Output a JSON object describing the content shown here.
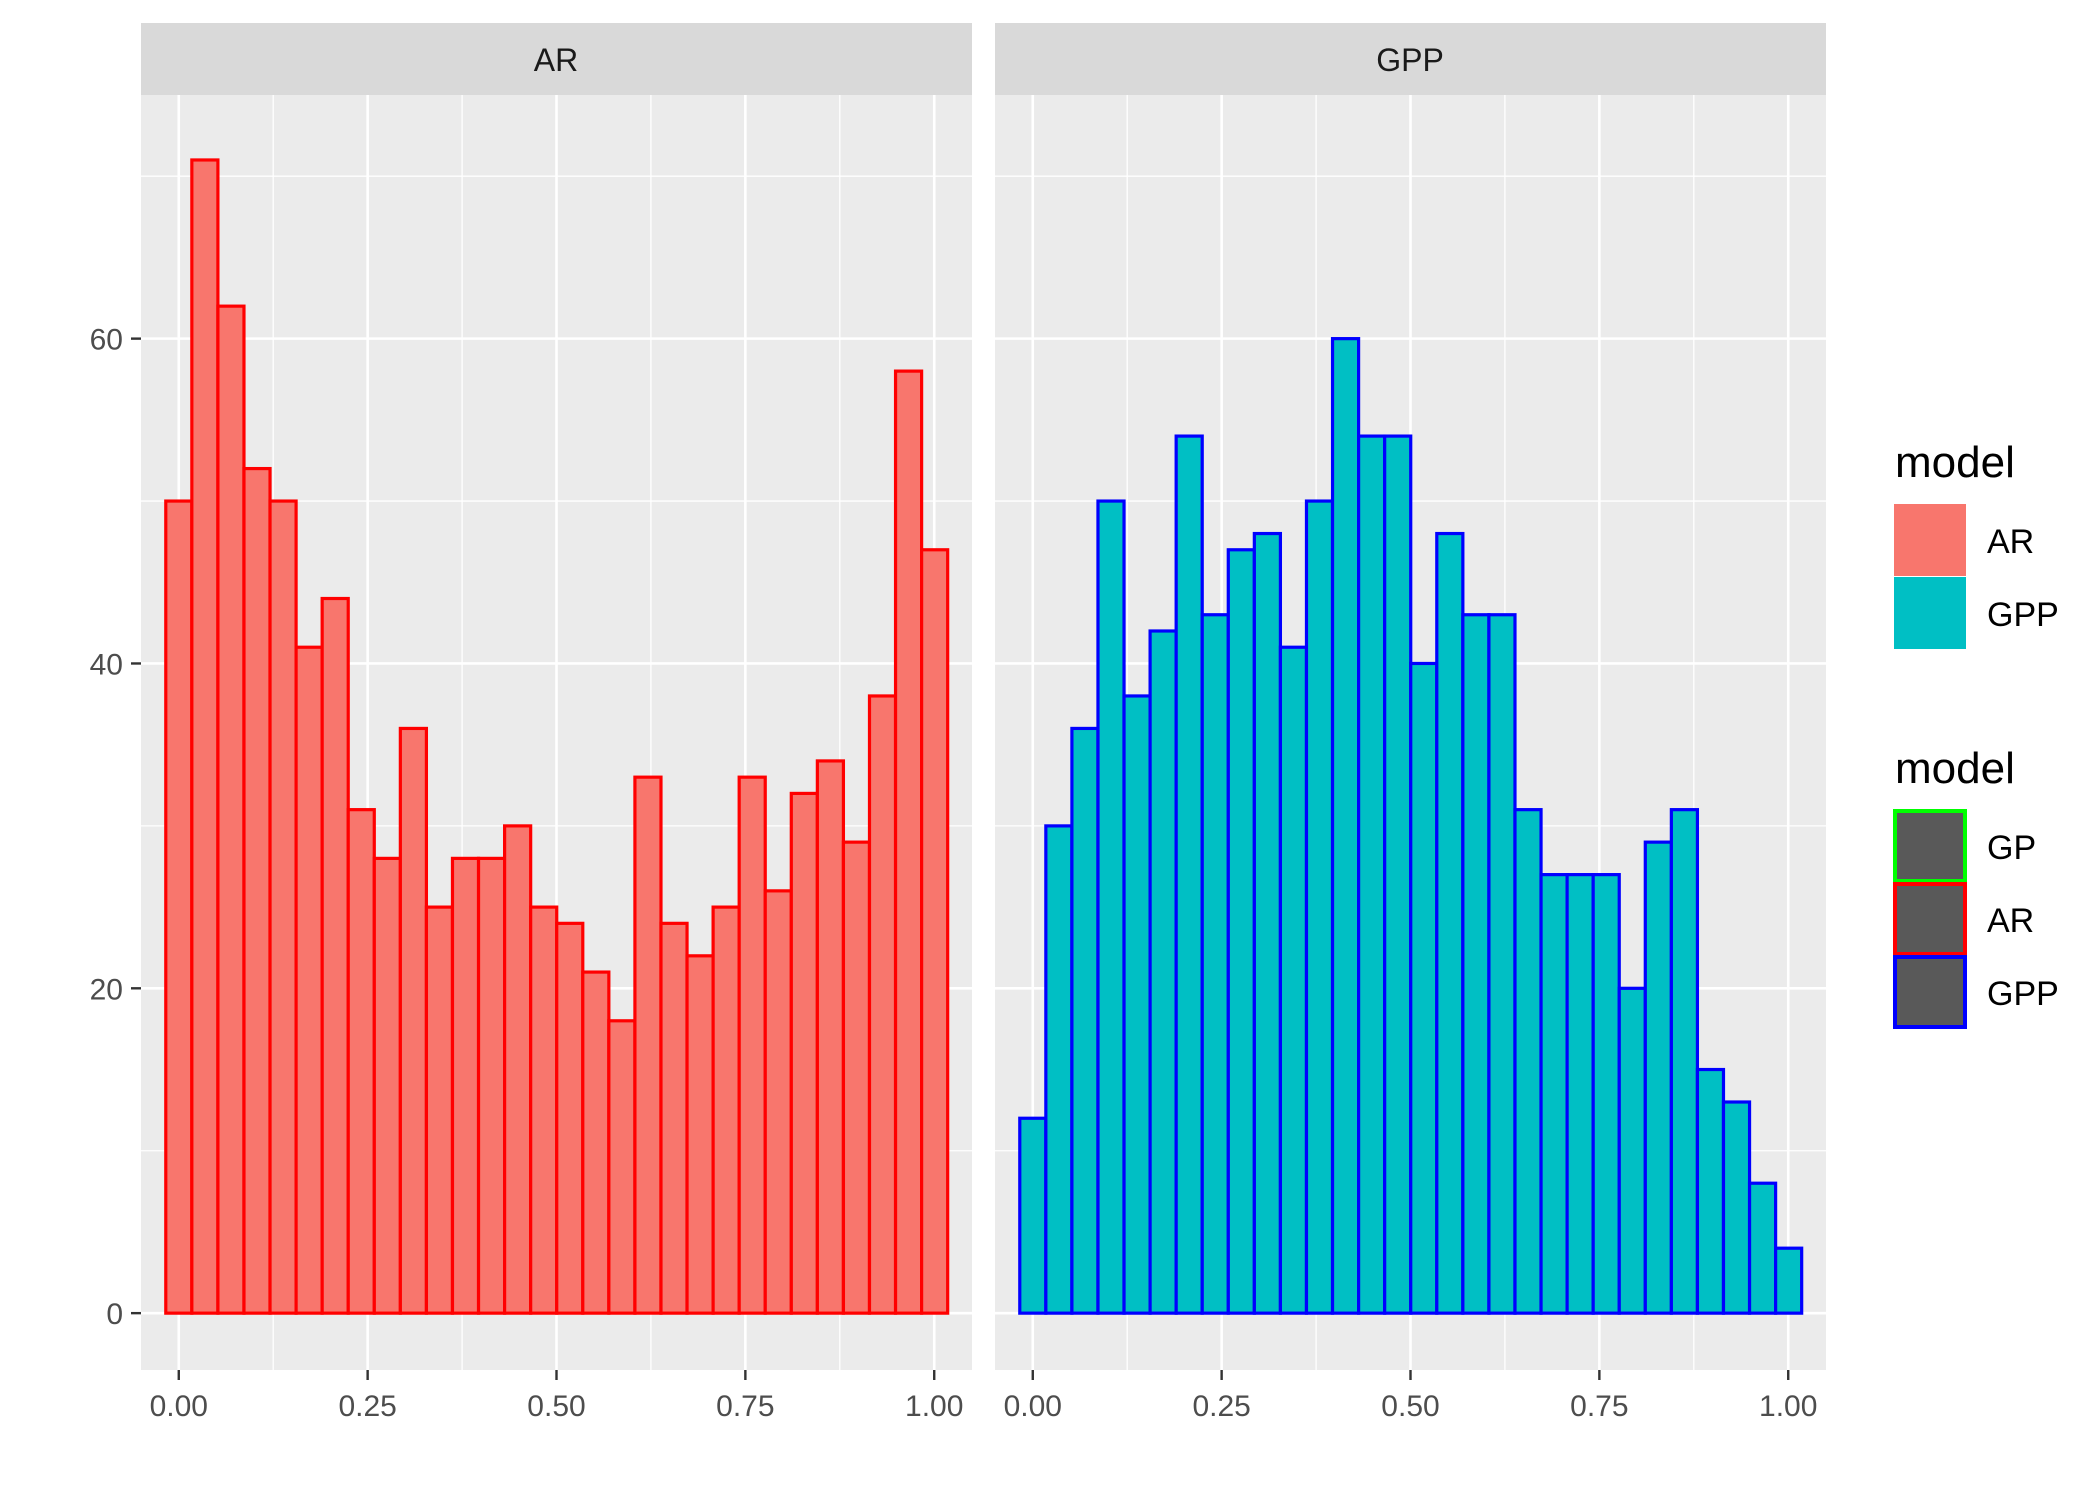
{
  "chart_data": {
    "type": "bar",
    "title": "",
    "xlabel": "",
    "ylabel": "",
    "xlim": [
      -0.05,
      1.05
    ],
    "ylim": [
      -3.5,
      75
    ],
    "x_ticks": [
      "0.00",
      "0.25",
      "0.50",
      "0.75",
      "1.00"
    ],
    "x_tick_values": [
      0,
      0.25,
      0.5,
      0.75,
      1.0
    ],
    "y_ticks": [
      "0",
      "20",
      "40",
      "60"
    ],
    "y_tick_values": [
      0,
      20,
      40,
      60
    ],
    "bin_width": 0.0345,
    "bin_start": -0.0172,
    "grid": true,
    "panels": [
      {
        "strip": "AR",
        "fill": "#F8766D",
        "outline": "#FF0000",
        "counts": [
          50,
          71,
          62,
          52,
          50,
          41,
          44,
          31,
          28,
          36,
          25,
          28,
          28,
          30,
          25,
          24,
          21,
          18,
          33,
          24,
          22,
          25,
          33,
          26,
          32,
          34,
          29,
          38,
          58,
          47
        ]
      },
      {
        "strip": "GPP",
        "fill": "#00BFC4",
        "outline": "#0000FF",
        "counts": [
          12,
          30,
          36,
          50,
          38,
          42,
          54,
          43,
          47,
          48,
          41,
          50,
          60,
          54,
          54,
          40,
          48,
          43,
          43,
          31,
          27,
          27,
          27,
          20,
          29,
          31,
          15,
          13,
          8,
          4
        ]
      }
    ],
    "legends": [
      {
        "title": "model",
        "entries": [
          {
            "label": "AR",
            "fill": "#F8766D",
            "outline": "#F8766D"
          },
          {
            "label": "GPP",
            "fill": "#00BFC4",
            "outline": "#00BFC4"
          }
        ]
      },
      {
        "title": "model",
        "entries": [
          {
            "label": "GP",
            "fill": "#595959",
            "outline": "#00FF00"
          },
          {
            "label": "AR",
            "fill": "#595959",
            "outline": "#FF0000"
          },
          {
            "label": "GPP",
            "fill": "#595959",
            "outline": "#0000FF"
          }
        ]
      }
    ]
  }
}
